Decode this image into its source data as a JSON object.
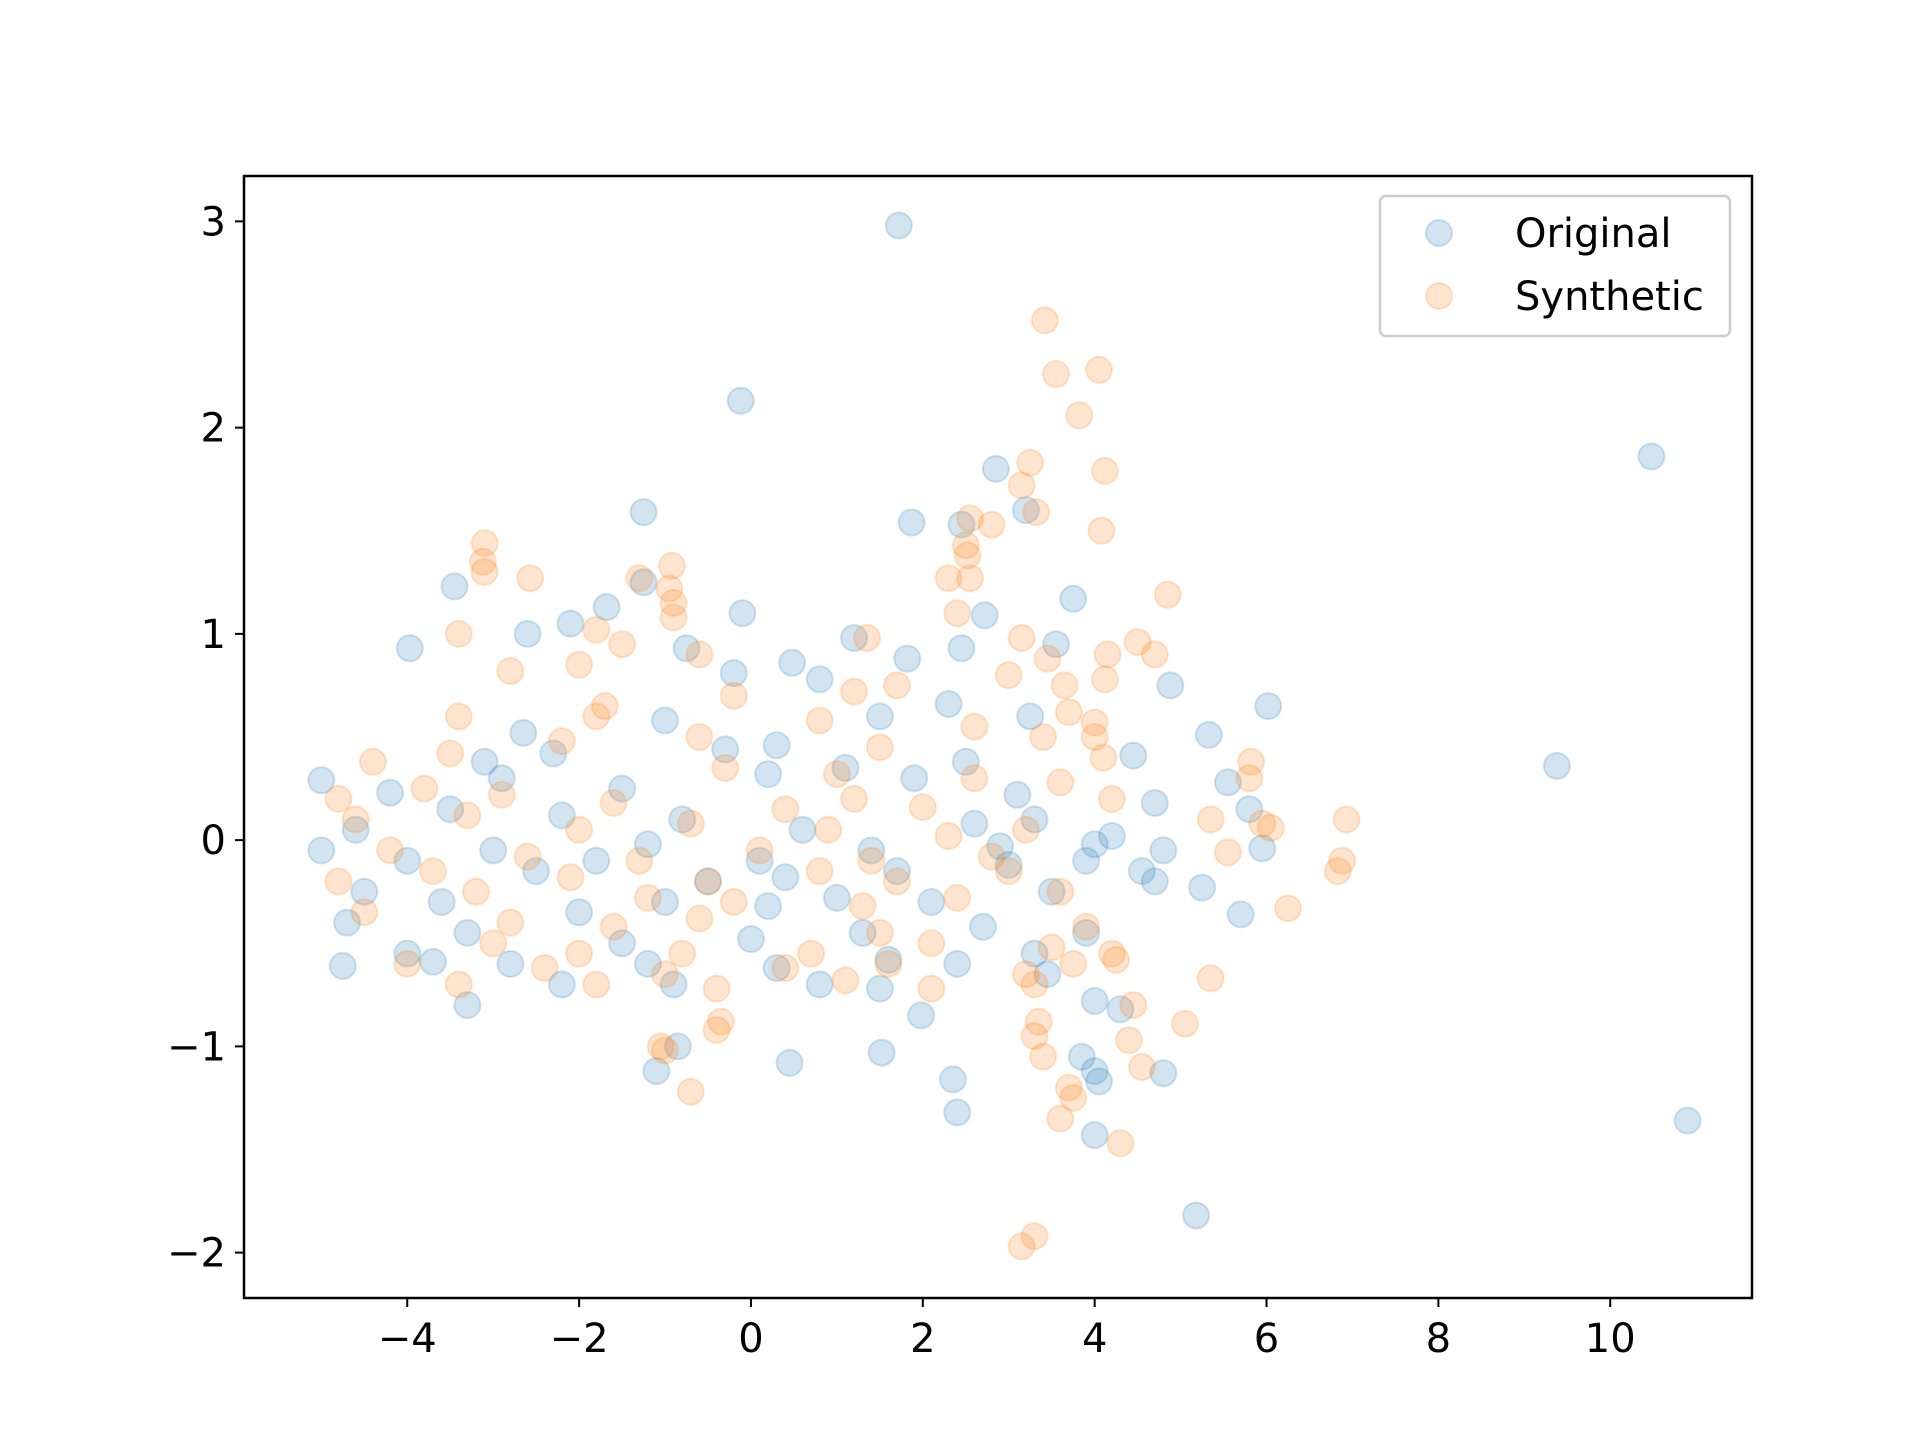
{
  "chart_data": {
    "type": "scatter",
    "title": "",
    "xlabel": "",
    "ylabel": "",
    "xlim": [
      -5.9,
      11.65
    ],
    "ylim": [
      -2.22,
      3.22
    ],
    "xticks": [
      -4,
      -2,
      0,
      2,
      4,
      6,
      8,
      10
    ],
    "yticks": [
      -2,
      -1,
      0,
      1,
      2,
      3
    ],
    "grid": false,
    "legend_position": "top-right",
    "marker_alpha": 0.2,
    "series": [
      {
        "name": "Original",
        "color": "#1f77b4",
        "points": [
          [
            1.72,
            2.98
          ],
          [
            -0.12,
            2.13
          ],
          [
            10.48,
            1.86
          ],
          [
            2.85,
            1.8
          ],
          [
            -1.25,
            1.59
          ],
          [
            3.2,
            1.6
          ],
          [
            1.87,
            1.54
          ],
          [
            2.45,
            1.53
          ],
          [
            -3.45,
            1.23
          ],
          [
            -1.25,
            1.25
          ],
          [
            3.75,
            1.17
          ],
          [
            -1.68,
            1.13
          ],
          [
            -0.1,
            1.1
          ],
          [
            2.72,
            1.09
          ],
          [
            -2.1,
            1.05
          ],
          [
            1.2,
            0.98
          ],
          [
            -2.6,
            1.0
          ],
          [
            -3.97,
            0.93
          ],
          [
            3.55,
            0.95
          ],
          [
            -0.75,
            0.93
          ],
          [
            0.48,
            0.86
          ],
          [
            2.45,
            0.93
          ],
          [
            1.82,
            0.88
          ],
          [
            -0.2,
            0.81
          ],
          [
            4.88,
            0.75
          ],
          [
            0.8,
            0.78
          ],
          [
            2.3,
            0.66
          ],
          [
            6.02,
            0.65
          ],
          [
            3.25,
            0.6
          ],
          [
            5.33,
            0.51
          ],
          [
            -2.65,
            0.52
          ],
          [
            -1.0,
            0.58
          ],
          [
            0.3,
            0.46
          ],
          [
            1.5,
            0.6
          ],
          [
            4.45,
            0.41
          ],
          [
            9.38,
            0.36
          ],
          [
            -2.3,
            0.42
          ],
          [
            -3.1,
            0.38
          ],
          [
            -0.3,
            0.44
          ],
          [
            2.5,
            0.38
          ],
          [
            5.55,
            0.28
          ],
          [
            -5.0,
            0.29
          ],
          [
            -4.2,
            0.23
          ],
          [
            -2.9,
            0.3
          ],
          [
            -1.5,
            0.25
          ],
          [
            0.2,
            0.32
          ],
          [
            1.1,
            0.35
          ],
          [
            1.9,
            0.3
          ],
          [
            3.1,
            0.22
          ],
          [
            4.7,
            0.18
          ],
          [
            5.8,
            0.15
          ],
          [
            -3.5,
            0.15
          ],
          [
            -2.2,
            0.12
          ],
          [
            -0.8,
            0.1
          ],
          [
            0.6,
            0.05
          ],
          [
            2.6,
            0.08
          ],
          [
            3.3,
            0.1
          ],
          [
            4.2,
            0.02
          ],
          [
            -4.6,
            0.05
          ],
          [
            -3.0,
            -0.05
          ],
          [
            -1.2,
            -0.02
          ],
          [
            0.1,
            -0.1
          ],
          [
            1.4,
            -0.05
          ],
          [
            2.9,
            -0.03
          ],
          [
            4.0,
            -0.02
          ],
          [
            4.8,
            -0.05
          ],
          [
            5.95,
            -0.04
          ],
          [
            -5.0,
            -0.05
          ],
          [
            -4.0,
            -0.1
          ],
          [
            -2.5,
            -0.15
          ],
          [
            -1.8,
            -0.1
          ],
          [
            -0.5,
            -0.2
          ],
          [
            0.4,
            -0.18
          ],
          [
            1.7,
            -0.15
          ],
          [
            3.0,
            -0.12
          ],
          [
            3.9,
            -0.1
          ],
          [
            4.55,
            -0.15
          ],
          [
            -4.5,
            -0.25
          ],
          [
            -3.6,
            -0.3
          ],
          [
            -2.0,
            -0.35
          ],
          [
            -1.0,
            -0.3
          ],
          [
            0.2,
            -0.32
          ],
          [
            1.0,
            -0.28
          ],
          [
            2.1,
            -0.3
          ],
          [
            3.5,
            -0.25
          ],
          [
            4.7,
            -0.2
          ],
          [
            5.25,
            -0.23
          ],
          [
            -4.7,
            -0.4
          ],
          [
            -3.3,
            -0.45
          ],
          [
            -1.5,
            -0.5
          ],
          [
            0.0,
            -0.48
          ],
          [
            1.3,
            -0.45
          ],
          [
            2.7,
            -0.42
          ],
          [
            3.9,
            -0.45
          ],
          [
            5.7,
            -0.36
          ],
          [
            -4.0,
            -0.55
          ],
          [
            -2.8,
            -0.6
          ],
          [
            -1.2,
            -0.6
          ],
          [
            0.3,
            -0.62
          ],
          [
            1.6,
            -0.58
          ],
          [
            2.4,
            -0.6
          ],
          [
            3.3,
            -0.55
          ],
          [
            -4.75,
            -0.61
          ],
          [
            -3.7,
            -0.59
          ],
          [
            -2.2,
            -0.7
          ],
          [
            -0.9,
            -0.7
          ],
          [
            0.8,
            -0.7
          ],
          [
            1.5,
            -0.72
          ],
          [
            3.45,
            -0.65
          ],
          [
            -3.3,
            -0.8
          ],
          [
            1.98,
            -0.85
          ],
          [
            4.0,
            -0.78
          ],
          [
            4.3,
            -0.82
          ],
          [
            -0.85,
            -1.0
          ],
          [
            1.52,
            -1.03
          ],
          [
            0.45,
            -1.08
          ],
          [
            3.85,
            -1.05
          ],
          [
            4.0,
            -1.12
          ],
          [
            4.8,
            -1.13
          ],
          [
            -1.1,
            -1.12
          ],
          [
            2.35,
            -1.16
          ],
          [
            4.05,
            -1.17
          ],
          [
            2.4,
            -1.32
          ],
          [
            10.9,
            -1.36
          ],
          [
            4.0,
            -1.43
          ],
          [
            5.18,
            -1.82
          ]
        ]
      },
      {
        "name": "Synthetic",
        "color": "#ff7f0e",
        "points": [
          [
            3.42,
            2.52
          ],
          [
            4.05,
            2.28
          ],
          [
            3.55,
            2.26
          ],
          [
            3.82,
            2.06
          ],
          [
            3.25,
            1.83
          ],
          [
            4.12,
            1.79
          ],
          [
            3.15,
            1.72
          ],
          [
            3.32,
            1.59
          ],
          [
            2.55,
            1.56
          ],
          [
            2.8,
            1.53
          ],
          [
            4.08,
            1.5
          ],
          [
            -3.1,
            1.44
          ],
          [
            2.5,
            1.43
          ],
          [
            2.52,
            1.38
          ],
          [
            -3.12,
            1.35
          ],
          [
            -3.1,
            1.3
          ],
          [
            -0.92,
            1.33
          ],
          [
            -1.3,
            1.27
          ],
          [
            -2.57,
            1.27
          ],
          [
            2.3,
            1.27
          ],
          [
            2.55,
            1.27
          ],
          [
            -0.95,
            1.22
          ],
          [
            4.85,
            1.19
          ],
          [
            -0.9,
            1.15
          ],
          [
            2.4,
            1.1
          ],
          [
            -3.4,
            1.0
          ],
          [
            -1.8,
            1.02
          ],
          [
            -0.9,
            1.08
          ],
          [
            1.35,
            0.98
          ],
          [
            4.5,
            0.96
          ],
          [
            3.15,
            0.98
          ],
          [
            4.7,
            0.9
          ],
          [
            -1.5,
            0.95
          ],
          [
            -0.6,
            0.9
          ],
          [
            3.45,
            0.88
          ],
          [
            4.15,
            0.9
          ],
          [
            -2.8,
            0.82
          ],
          [
            -2.0,
            0.85
          ],
          [
            1.7,
            0.75
          ],
          [
            3.0,
            0.8
          ],
          [
            3.65,
            0.75
          ],
          [
            4.12,
            0.78
          ],
          [
            -1.7,
            0.65
          ],
          [
            -0.2,
            0.7
          ],
          [
            1.2,
            0.72
          ],
          [
            3.7,
            0.62
          ],
          [
            4.0,
            0.57
          ],
          [
            -3.4,
            0.6
          ],
          [
            -1.8,
            0.6
          ],
          [
            0.8,
            0.58
          ],
          [
            2.6,
            0.55
          ],
          [
            4.0,
            0.5
          ],
          [
            -2.2,
            0.48
          ],
          [
            -0.6,
            0.5
          ],
          [
            1.5,
            0.45
          ],
          [
            3.4,
            0.5
          ],
          [
            4.1,
            0.4
          ],
          [
            5.82,
            0.38
          ],
          [
            -4.4,
            0.38
          ],
          [
            -3.5,
            0.42
          ],
          [
            -0.3,
            0.35
          ],
          [
            1.0,
            0.32
          ],
          [
            2.6,
            0.3
          ],
          [
            3.6,
            0.28
          ],
          [
            5.8,
            0.3
          ],
          [
            -4.8,
            0.2
          ],
          [
            -3.8,
            0.25
          ],
          [
            -2.9,
            0.22
          ],
          [
            -1.6,
            0.18
          ],
          [
            0.4,
            0.15
          ],
          [
            1.2,
            0.2
          ],
          [
            2.0,
            0.16
          ],
          [
            4.2,
            0.2
          ],
          [
            5.35,
            0.1
          ],
          [
            5.95,
            0.08
          ],
          [
            6.93,
            0.1
          ],
          [
            -4.6,
            0.1
          ],
          [
            -3.3,
            0.12
          ],
          [
            -2.0,
            0.05
          ],
          [
            -0.7,
            0.08
          ],
          [
            0.9,
            0.05
          ],
          [
            2.3,
            0.02
          ],
          [
            3.2,
            0.05
          ],
          [
            6.05,
            0.06
          ],
          [
            -4.2,
            -0.05
          ],
          [
            -2.6,
            -0.08
          ],
          [
            -1.3,
            -0.1
          ],
          [
            0.1,
            -0.05
          ],
          [
            1.4,
            -0.1
          ],
          [
            2.8,
            -0.08
          ],
          [
            5.55,
            -0.06
          ],
          [
            -3.7,
            -0.15
          ],
          [
            -2.1,
            -0.18
          ],
          [
            -0.5,
            -0.2
          ],
          [
            0.8,
            -0.15
          ],
          [
            1.7,
            -0.2
          ],
          [
            3.0,
            -0.15
          ],
          [
            6.88,
            -0.1
          ],
          [
            6.83,
            -0.15
          ],
          [
            -4.8,
            -0.2
          ],
          [
            -3.2,
            -0.25
          ],
          [
            -1.2,
            -0.28
          ],
          [
            -0.2,
            -0.3
          ],
          [
            1.3,
            -0.32
          ],
          [
            2.4,
            -0.28
          ],
          [
            3.6,
            -0.25
          ],
          [
            6.25,
            -0.33
          ],
          [
            -4.5,
            -0.35
          ],
          [
            -2.8,
            -0.4
          ],
          [
            -1.6,
            -0.42
          ],
          [
            -0.6,
            -0.38
          ],
          [
            1.5,
            -0.45
          ],
          [
            3.9,
            -0.42
          ],
          [
            -3.0,
            -0.5
          ],
          [
            -2.0,
            -0.55
          ],
          [
            -0.8,
            -0.55
          ],
          [
            0.7,
            -0.55
          ],
          [
            2.1,
            -0.5
          ],
          [
            3.5,
            -0.52
          ],
          [
            4.2,
            -0.55
          ],
          [
            -4.0,
            -0.6
          ],
          [
            -2.4,
            -0.62
          ],
          [
            -1.0,
            -0.65
          ],
          [
            0.4,
            -0.62
          ],
          [
            1.6,
            -0.6
          ],
          [
            3.2,
            -0.65
          ],
          [
            3.75,
            -0.6
          ],
          [
            4.25,
            -0.58
          ],
          [
            -3.4,
            -0.7
          ],
          [
            -1.8,
            -0.7
          ],
          [
            -0.4,
            -0.72
          ],
          [
            1.1,
            -0.68
          ],
          [
            2.1,
            -0.72
          ],
          [
            3.3,
            -0.7
          ],
          [
            5.35,
            -0.67
          ],
          [
            4.45,
            -0.8
          ],
          [
            -0.35,
            -0.88
          ],
          [
            3.35,
            -0.88
          ],
          [
            5.05,
            -0.89
          ],
          [
            -0.4,
            -0.92
          ],
          [
            3.3,
            -0.95
          ],
          [
            4.4,
            -0.97
          ],
          [
            -1.05,
            -1.0
          ],
          [
            -1.0,
            -1.02
          ],
          [
            3.4,
            -1.05
          ],
          [
            4.55,
            -1.1
          ],
          [
            3.7,
            -1.2
          ],
          [
            3.75,
            -1.25
          ],
          [
            -0.7,
            -1.22
          ],
          [
            3.6,
            -1.35
          ],
          [
            4.3,
            -1.47
          ],
          [
            3.3,
            -1.92
          ],
          [
            3.15,
            -1.97
          ]
        ]
      }
    ]
  }
}
